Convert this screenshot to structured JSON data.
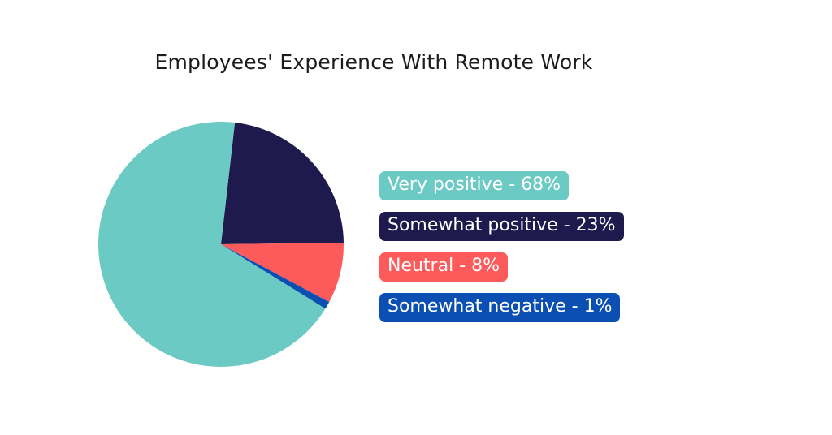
{
  "chart_data": {
    "type": "pie",
    "title": "Employees' Experience With Remote Work",
    "slices": [
      {
        "label": "Very positive",
        "value": 68,
        "color": "#6ccac4",
        "legend_text": "Very positive - 68%"
      },
      {
        "label": "Somewhat positive",
        "value": 23,
        "color": "#1e1a4d",
        "legend_text": "Somewhat positive - 23%"
      },
      {
        "label": "Neutral",
        "value": 8,
        "color": "#fd5b5b",
        "legend_text": "Neutral - 8%"
      },
      {
        "label": "Somewhat negative",
        "value": 1,
        "color": "#0b4fb3",
        "legend_text": "Somewhat negative - 1%"
      }
    ],
    "legend_placement": "right"
  }
}
